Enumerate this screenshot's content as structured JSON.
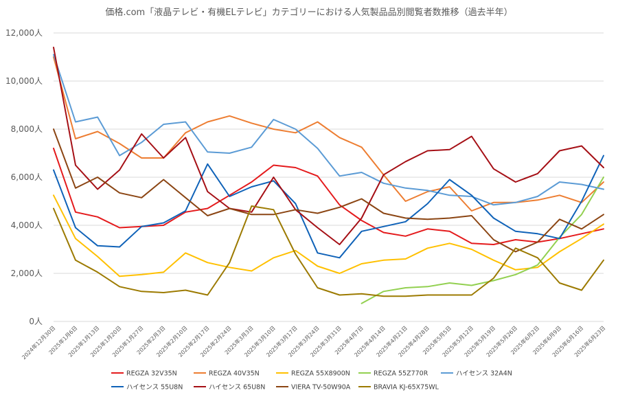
{
  "chart_data": {
    "type": "line",
    "title": "価格.com「液晶テレビ・有機ELテレビ」カテゴリーにおける人気製品品別閲覧者数推移（過去半年）",
    "x": [
      "2024年12月30日",
      "2025年1月6日",
      "2025年1月13日",
      "2025年1月20日",
      "2025年1月27日",
      "2025年2月3日",
      "2025年2月10日",
      "2025年2月17日",
      "2025年2月24日",
      "2025年3月3日",
      "2025年3月10日",
      "2025年3月17日",
      "2025年3月24日",
      "2025年3月31日",
      "2025年4月7日",
      "2025年4月14日",
      "2025年4月21日",
      "2025年4月28日",
      "2025年5月5日",
      "2025年5月12日",
      "2025年5月19日",
      "2025年5月26日",
      "2025年6月2日",
      "2025年6月9日",
      "2025年6月16日",
      "2025年6月23日"
    ],
    "ylim": [
      0,
      12000
    ],
    "yticks": [
      0,
      2000,
      4000,
      6000,
      8000,
      10000,
      12000
    ],
    "ytick_labels": [
      "0人",
      "2,000人",
      "4,000人",
      "6,000人",
      "8,000人",
      "10,000人",
      "12,000人"
    ],
    "grid": true,
    "legend_position": "bottom",
    "series": [
      {
        "name": "REGZA 32V35N",
        "color": "#e41a1c",
        "values": [
          7200,
          4550,
          4350,
          3900,
          3950,
          4000,
          4550,
          4700,
          5250,
          5800,
          6500,
          6400,
          6050,
          4850,
          4200,
          3700,
          3550,
          3850,
          3750,
          3250,
          3200,
          3400,
          3300,
          3450,
          3650,
          3850
        ]
      },
      {
        "name": "REGZA 40V35N",
        "color": "#ed7d31",
        "values": [
          11000,
          7600,
          7900,
          7400,
          6800,
          6800,
          7850,
          8300,
          8550,
          8250,
          8000,
          7850,
          8300,
          7650,
          7250,
          6100,
          5000,
          5400,
          5600,
          4600,
          4950,
          4950,
          5050,
          5250,
          4950,
          5800
        ]
      },
      {
        "name": "REGZA 55X8900N",
        "color": "#ffc000",
        "values": [
          5250,
          3450,
          2700,
          1880,
          1950,
          2050,
          2850,
          2450,
          2250,
          2100,
          2650,
          2950,
          2300,
          2000,
          2400,
          2550,
          2600,
          3050,
          3250,
          3000,
          2550,
          2150,
          2250,
          2900,
          3450,
          4050
        ]
      },
      {
        "name": "REGZA 55Z770R",
        "color": "#92d050",
        "values": [
          null,
          null,
          null,
          null,
          null,
          null,
          null,
          null,
          null,
          null,
          null,
          null,
          null,
          null,
          750,
          1250,
          1400,
          1450,
          1600,
          1500,
          1700,
          1950,
          2350,
          3500,
          4450,
          6000
        ]
      },
      {
        "name": "ハイセンス 32A4N",
        "color": "#5b9bd5",
        "values": [
          11100,
          8300,
          8500,
          6900,
          7450,
          8200,
          8300,
          7050,
          7000,
          7250,
          8400,
          8000,
          7200,
          6050,
          6200,
          5750,
          5550,
          5450,
          5250,
          5200,
          4850,
          4950,
          5200,
          5800,
          5700,
          5500
        ]
      },
      {
        "name": "ハイセンス 55U8N",
        "color": "#0f62b8",
        "values": [
          6300,
          3900,
          3150,
          3100,
          3950,
          4100,
          4600,
          6550,
          5200,
          5600,
          5850,
          4900,
          2850,
          2650,
          3750,
          3950,
          4150,
          4900,
          5900,
          5250,
          4300,
          3750,
          3650,
          3450,
          5000,
          6900
        ]
      },
      {
        "name": "ハイセンス 65U8N",
        "color": "#a50f15",
        "values": [
          11400,
          6500,
          5500,
          6300,
          7800,
          6800,
          7650,
          5400,
          4700,
          4550,
          6000,
          4650,
          3900,
          3200,
          4300,
          6100,
          6650,
          7100,
          7150,
          7700,
          6350,
          5800,
          6150,
          7100,
          7300,
          6400
        ]
      },
      {
        "name": "VIERA TV-50W90A",
        "color": "#8b4513",
        "values": [
          8000,
          5550,
          6000,
          5350,
          5150,
          5900,
          5150,
          4400,
          4700,
          4450,
          4450,
          4650,
          4500,
          4750,
          5100,
          4500,
          4300,
          4250,
          4300,
          4400,
          3400,
          2900,
          3300,
          4250,
          3850,
          4450
        ]
      },
      {
        "name": "BRAVIA KJ-65X75WL",
        "color": "#9c7a00",
        "values": [
          4700,
          2550,
          2050,
          1450,
          1250,
          1200,
          1300,
          1100,
          2450,
          4800,
          4650,
          2800,
          1400,
          1100,
          1150,
          1050,
          1050,
          1100,
          1100,
          1100,
          1800,
          3050,
          2650,
          1600,
          1300,
          2550
        ]
      }
    ]
  }
}
